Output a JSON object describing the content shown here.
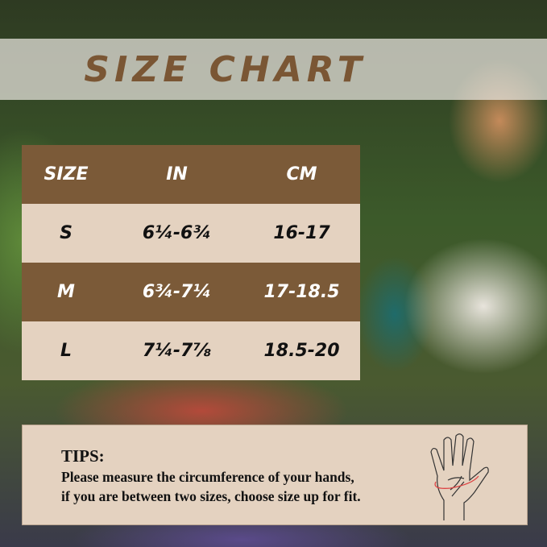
{
  "title": "SIZE CHART",
  "table": {
    "headers": [
      "SIZE",
      "IN",
      "CM"
    ],
    "rows": [
      {
        "size": "S",
        "in": "6¼-6¾",
        "cm": "16-17"
      },
      {
        "size": "M",
        "in": "6¾-7¼",
        "cm": "17-18.5"
      },
      {
        "size": "L",
        "in": "7¼-7⅞",
        "cm": "18.5-20"
      }
    ]
  },
  "tips": {
    "heading": "TIPS:",
    "line1": "Please measure the circumference of your hands,",
    "line2": "if you are between two sizes, choose size up for fit."
  },
  "colors": {
    "brown": "#7b5a38",
    "beige": "#e4d2c0"
  },
  "icons": [
    "hand-measure-icon"
  ]
}
